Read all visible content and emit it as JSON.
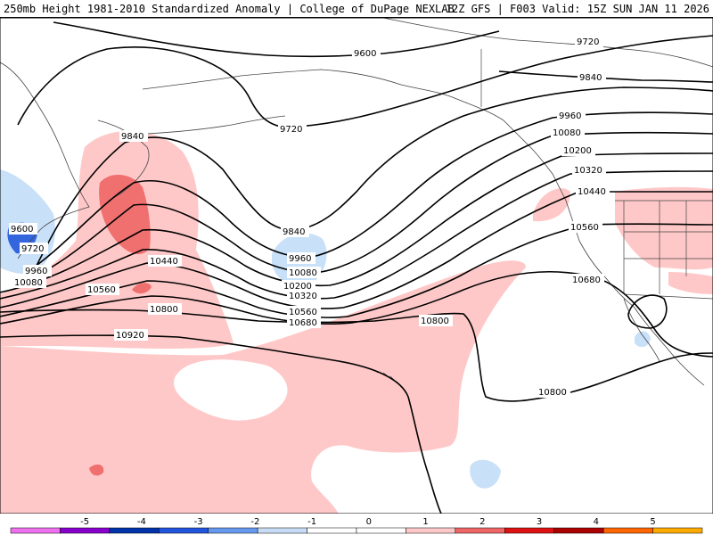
{
  "header": {
    "title_left": "250mb Height 1981-2010 Standardized Anomaly | College of DuPage NEXLAB",
    "title_right": "12Z GFS | F003 Valid: 15Z SUN JAN 11 2026"
  },
  "contours": {
    "labels": [
      "9600",
      "9720",
      "9840",
      "9960",
      "10080",
      "10200",
      "10320",
      "10440",
      "10560",
      "10680",
      "10800",
      "10920"
    ],
    "left_labels": [
      "9600",
      "9720",
      "9960",
      "10080"
    ]
  },
  "colorbar": {
    "ticks": [
      "-5",
      "-4",
      "-3",
      "-2",
      "-1",
      "0",
      "1",
      "2",
      "3",
      "4",
      "5"
    ],
    "colors": [
      "#ee70ee",
      "#8800cc",
      "#0033aa",
      "#2255dd",
      "#6699ee",
      "#c8ddf5",
      "#ffffff",
      "#ffffff",
      "#ffc8c8",
      "#ee6666",
      "#dd1111",
      "#aa0000",
      "#ff6600",
      "#ffaa00"
    ]
  },
  "anomaly_colors": {
    "pos1": "#ffc8c8",
    "pos2": "#f07070",
    "neg1": "#c8e0f8",
    "neg2": "#7799ee",
    "neg3": "#3366dd"
  }
}
